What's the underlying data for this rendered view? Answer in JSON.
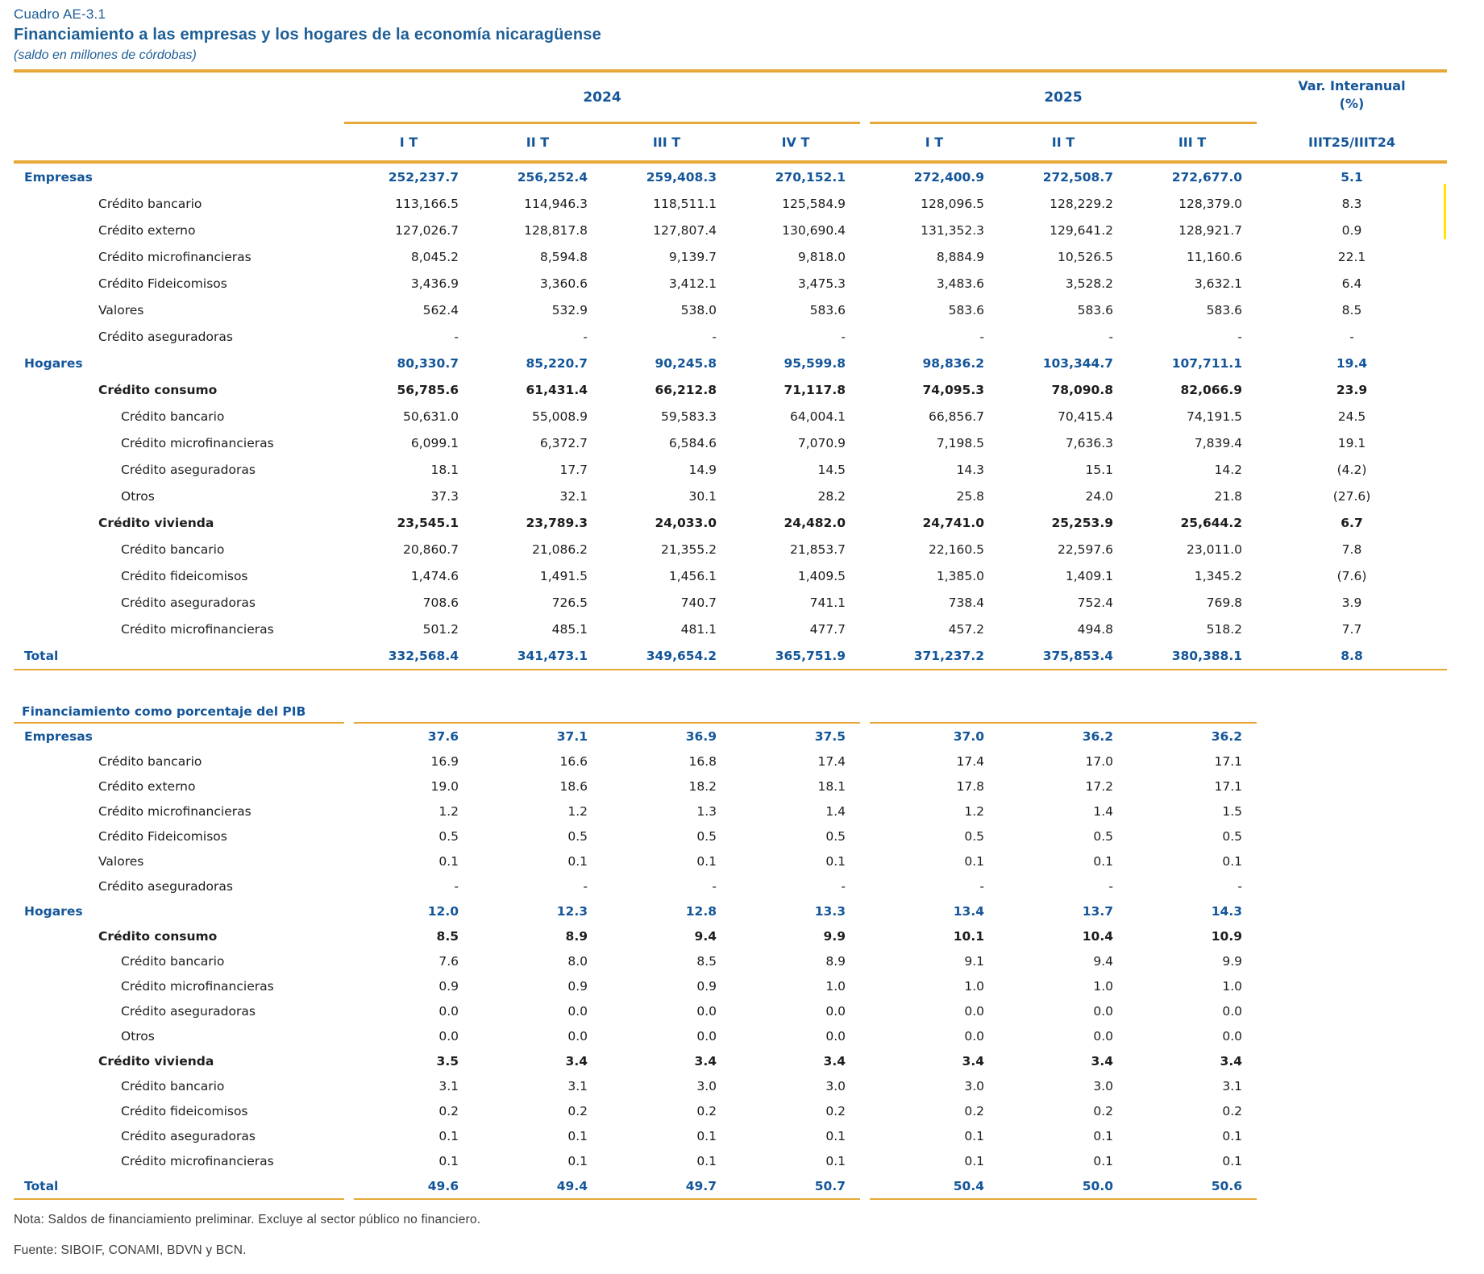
{
  "header": {
    "code": "Cuadro AE-3.1",
    "title": "Financiamiento a las empresas y los hogares de la economía nicaragüense",
    "subtitle": "(saldo en millones de córdobas)",
    "groups": [
      {
        "label": "2024"
      },
      {
        "label": "2025"
      }
    ],
    "quarters_2024": [
      "I T",
      "II T",
      "III T",
      "IV T"
    ],
    "quarters_2025": [
      "I T",
      "II T",
      "III T"
    ],
    "var_title": "Var. Interanual",
    "var_unit": "(%)",
    "var_sub": "IIIT25/IIIT24"
  },
  "sections": [
    {
      "id": "saldo",
      "rows": [
        {
          "label": "Empresas",
          "level": 0,
          "style": "head",
          "values": [
            "252,237.7",
            "256,252.4",
            "259,408.3",
            "270,152.1",
            "272,400.9",
            "272,508.7",
            "272,677.0"
          ],
          "var": "5.1"
        },
        {
          "label": "Crédito bancario",
          "level": 1,
          "style": "plain",
          "values": [
            "113,166.5",
            "114,946.3",
            "118,511.1",
            "125,584.9",
            "128,096.5",
            "128,229.2",
            "128,379.0"
          ],
          "var": "8.3"
        },
        {
          "label": "Crédito externo",
          "level": 1,
          "style": "plain",
          "values": [
            "127,026.7",
            "128,817.8",
            "127,807.4",
            "130,690.4",
            "131,352.3",
            "129,641.2",
            "128,921.7"
          ],
          "var": "0.9"
        },
        {
          "label": "Crédito microfinancieras",
          "level": 1,
          "style": "plain",
          "values": [
            "8,045.2",
            "8,594.8",
            "9,139.7",
            "9,818.0",
            "8,884.9",
            "10,526.5",
            "11,160.6"
          ],
          "var": "22.1"
        },
        {
          "label": "Crédito Fideicomisos",
          "level": 1,
          "style": "plain",
          "values": [
            "3,436.9",
            "3,360.6",
            "3,412.1",
            "3,475.3",
            "3,483.6",
            "3,528.2",
            "3,632.1"
          ],
          "var": "6.4"
        },
        {
          "label": "Valores",
          "level": 1,
          "style": "plain",
          "values": [
            "562.4",
            "532.9",
            "538.0",
            "583.6",
            "583.6",
            "583.6",
            "583.6"
          ],
          "var": "8.5"
        },
        {
          "label": "Crédito aseguradoras",
          "level": 1,
          "style": "plain",
          "values": [
            "-",
            "-",
            "-",
            "-",
            "-",
            "-",
            "-"
          ],
          "var": "-"
        },
        {
          "label": "Hogares",
          "level": 0,
          "style": "head",
          "values": [
            "80,330.7",
            "85,220.7",
            "90,245.8",
            "95,599.8",
            "98,836.2",
            "103,344.7",
            "107,711.1"
          ],
          "var": "19.4"
        },
        {
          "label": "Crédito consumo",
          "level": 1,
          "style": "subhead",
          "values": [
            "56,785.6",
            "61,431.4",
            "66,212.8",
            "71,117.8",
            "74,095.3",
            "78,090.8",
            "82,066.9"
          ],
          "var": "23.9"
        },
        {
          "label": "Crédito bancario",
          "level": 2,
          "style": "plain",
          "values": [
            "50,631.0",
            "55,008.9",
            "59,583.3",
            "64,004.1",
            "66,856.7",
            "70,415.4",
            "74,191.5"
          ],
          "var": "24.5"
        },
        {
          "label": "Crédito microfinancieras",
          "level": 2,
          "style": "plain",
          "values": [
            "6,099.1",
            "6,372.7",
            "6,584.6",
            "7,070.9",
            "7,198.5",
            "7,636.3",
            "7,839.4"
          ],
          "var": "19.1"
        },
        {
          "label": "Crédito aseguradoras",
          "level": 2,
          "style": "plain",
          "values": [
            "18.1",
            "17.7",
            "14.9",
            "14.5",
            "14.3",
            "15.1",
            "14.2"
          ],
          "var": "(4.2)"
        },
        {
          "label": "Otros",
          "level": 2,
          "style": "plain",
          "values": [
            "37.3",
            "32.1",
            "30.1",
            "28.2",
            "25.8",
            "24.0",
            "21.8"
          ],
          "var": "(27.6)"
        },
        {
          "label": "Crédito vivienda",
          "level": 1,
          "style": "subhead",
          "values": [
            "23,545.1",
            "23,789.3",
            "24,033.0",
            "24,482.0",
            "24,741.0",
            "25,253.9",
            "25,644.2"
          ],
          "var": "6.7"
        },
        {
          "label": "Crédito bancario",
          "level": 2,
          "style": "plain",
          "values": [
            "20,860.7",
            "21,086.2",
            "21,355.2",
            "21,853.7",
            "22,160.5",
            "22,597.6",
            "23,011.0"
          ],
          "var": "7.8"
        },
        {
          "label": "Crédito fideicomisos",
          "level": 2,
          "style": "plain",
          "values": [
            "1,474.6",
            "1,491.5",
            "1,456.1",
            "1,409.5",
            "1,385.0",
            "1,409.1",
            "1,345.2"
          ],
          "var": "(7.6)"
        },
        {
          "label": "Crédito aseguradoras",
          "level": 2,
          "style": "plain",
          "values": [
            "708.6",
            "726.5",
            "740.7",
            "741.1",
            "738.4",
            "752.4",
            "769.8"
          ],
          "var": "3.9"
        },
        {
          "label": "Crédito microfinancieras",
          "level": 2,
          "style": "plain",
          "values": [
            "501.2",
            "485.1",
            "481.1",
            "477.7",
            "457.2",
            "494.8",
            "518.2"
          ],
          "var": "7.7"
        },
        {
          "label": "Total",
          "level": 0,
          "style": "head",
          "values": [
            "332,568.4",
            "341,473.1",
            "349,654.2",
            "365,751.9",
            "371,237.2",
            "375,853.4",
            "380,388.1"
          ],
          "var": "8.8"
        }
      ]
    },
    {
      "id": "pib",
      "title": "Financiamiento como porcentaje del PIB",
      "rows": [
        {
          "label": "Empresas",
          "level": 0,
          "style": "head",
          "values": [
            "37.6",
            "37.1",
            "36.9",
            "37.5",
            "37.0",
            "36.2",
            "36.2"
          ],
          "var": ""
        },
        {
          "label": "Crédito bancario",
          "level": 1,
          "style": "plain",
          "values": [
            "16.9",
            "16.6",
            "16.8",
            "17.4",
            "17.4",
            "17.0",
            "17.1"
          ],
          "var": ""
        },
        {
          "label": "Crédito externo",
          "level": 1,
          "style": "plain",
          "values": [
            "19.0",
            "18.6",
            "18.2",
            "18.1",
            "17.8",
            "17.2",
            "17.1"
          ],
          "var": ""
        },
        {
          "label": "Crédito microfinancieras",
          "level": 1,
          "style": "plain",
          "values": [
            "1.2",
            "1.2",
            "1.3",
            "1.4",
            "1.2",
            "1.4",
            "1.5"
          ],
          "var": ""
        },
        {
          "label": "Crédito Fideicomisos",
          "level": 1,
          "style": "plain",
          "values": [
            "0.5",
            "0.5",
            "0.5",
            "0.5",
            "0.5",
            "0.5",
            "0.5"
          ],
          "var": ""
        },
        {
          "label": "Valores",
          "level": 1,
          "style": "plain",
          "values": [
            "0.1",
            "0.1",
            "0.1",
            "0.1",
            "0.1",
            "0.1",
            "0.1"
          ],
          "var": ""
        },
        {
          "label": "Crédito aseguradoras",
          "level": 1,
          "style": "plain",
          "values": [
            "-",
            "-",
            "-",
            "-",
            "-",
            "-",
            "-"
          ],
          "var": ""
        },
        {
          "label": "Hogares",
          "level": 0,
          "style": "head",
          "values": [
            "12.0",
            "12.3",
            "12.8",
            "13.3",
            "13.4",
            "13.7",
            "14.3"
          ],
          "var": ""
        },
        {
          "label": "Crédito consumo",
          "level": 1,
          "style": "subhead",
          "values": [
            "8.5",
            "8.9",
            "9.4",
            "9.9",
            "10.1",
            "10.4",
            "10.9"
          ],
          "var": ""
        },
        {
          "label": "Crédito bancario",
          "level": 2,
          "style": "plain",
          "values": [
            "7.6",
            "8.0",
            "8.5",
            "8.9",
            "9.1",
            "9.4",
            "9.9"
          ],
          "var": ""
        },
        {
          "label": "Crédito microfinancieras",
          "level": 2,
          "style": "plain",
          "values": [
            "0.9",
            "0.9",
            "0.9",
            "1.0",
            "1.0",
            "1.0",
            "1.0"
          ],
          "var": ""
        },
        {
          "label": "Crédito aseguradoras",
          "level": 2,
          "style": "plain",
          "values": [
            "0.0",
            "0.0",
            "0.0",
            "0.0",
            "0.0",
            "0.0",
            "0.0"
          ],
          "var": ""
        },
        {
          "label": "Otros",
          "level": 2,
          "style": "plain",
          "values": [
            "0.0",
            "0.0",
            "0.0",
            "0.0",
            "0.0",
            "0.0",
            "0.0"
          ],
          "var": ""
        },
        {
          "label": "Crédito vivienda",
          "level": 1,
          "style": "subhead",
          "values": [
            "3.5",
            "3.4",
            "3.4",
            "3.4",
            "3.4",
            "3.4",
            "3.4"
          ],
          "var": ""
        },
        {
          "label": "Crédito bancario",
          "level": 2,
          "style": "plain",
          "values": [
            "3.1",
            "3.1",
            "3.0",
            "3.0",
            "3.0",
            "3.0",
            "3.1"
          ],
          "var": ""
        },
        {
          "label": "Crédito fideicomisos",
          "level": 2,
          "style": "plain",
          "values": [
            "0.2",
            "0.2",
            "0.2",
            "0.2",
            "0.2",
            "0.2",
            "0.2"
          ],
          "var": ""
        },
        {
          "label": "Crédito aseguradoras",
          "level": 2,
          "style": "plain",
          "values": [
            "0.1",
            "0.1",
            "0.1",
            "0.1",
            "0.1",
            "0.1",
            "0.1"
          ],
          "var": ""
        },
        {
          "label": "Crédito microfinancieras",
          "level": 2,
          "style": "plain",
          "values": [
            "0.1",
            "0.1",
            "0.1",
            "0.1",
            "0.1",
            "0.1",
            "0.1"
          ],
          "var": ""
        },
        {
          "label": "Total",
          "level": 0,
          "style": "head",
          "values": [
            "49.6",
            "49.4",
            "49.7",
            "50.7",
            "50.4",
            "50.0",
            "50.6"
          ],
          "var": ""
        }
      ]
    }
  ],
  "notes": {
    "nota": "Nota: Saldos de financiamiento preliminar. Excluye al sector público no financiero.",
    "fuente": "Fuente: SIBOIF, CONAMI, BDVN y BCN."
  },
  "colors": {
    "accent_gold": "#e8a838",
    "heading_blue": "#14569a",
    "title_blue": "#1d5e96",
    "highlight_yellow": "#ffe600",
    "body_text": "#1d1d1d"
  }
}
